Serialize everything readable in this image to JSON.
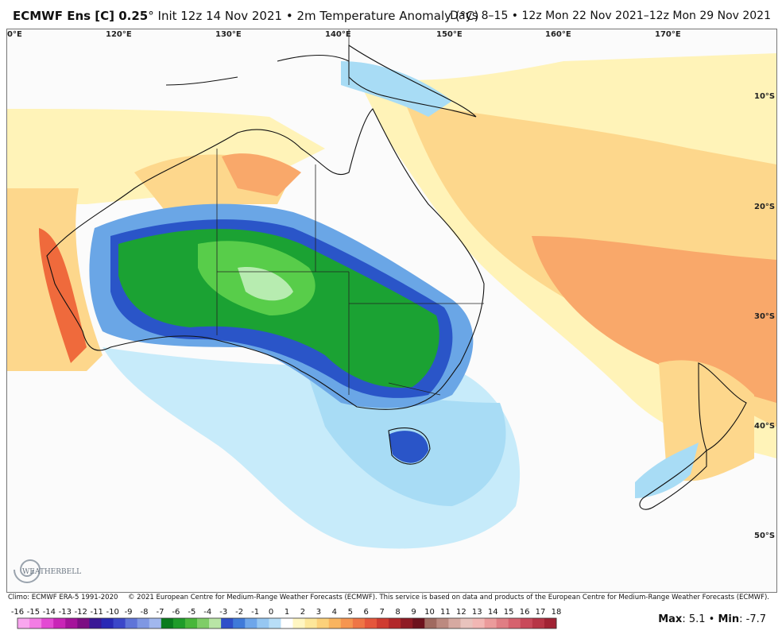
{
  "header": {
    "model": "ECMWF Ens [C] 0.25",
    "degree_sign": "°",
    "init": "Init 12z 14 Nov 2021",
    "bullet": "•",
    "field": "2m Temperature Anomaly (°C)",
    "valid": "Days 8–15 • 12z Mon 22 Nov 2021–12z Mon 29 Nov 2021"
  },
  "map": {
    "lon_labels": [
      "0°E",
      "120°E",
      "130°E",
      "140°E",
      "150°E",
      "160°E",
      "170°E"
    ],
    "lat_labels": [
      "10°S",
      "20°S",
      "30°S",
      "40°S",
      "50°S"
    ],
    "colors": {
      "ocean_neutral": "#fbfbfb",
      "warm_light": "#fff3b8",
      "warm_mid": "#fdd78c",
      "warm_strong": "#f9a86a",
      "warm_hot": "#ef6a3c",
      "cool_light": "#c7ebfa",
      "cool_mid": "#a8dcf5",
      "cool_blue": "#6aa6e6",
      "cool_deep": "#2a55c8",
      "cool_green": "#1ba233",
      "cool_lightgreen": "#58cd4a",
      "cool_palegreen": "#b7ecb0"
    }
  },
  "credits": {
    "climo": "Climo: ECMWF ERA-5 1991-2020",
    "copyright": "© 2021 European Centre for Medium-Range Weather Forecasts (ECMWF). This service is based on data and products of the European Centre for Medium-Range Weather Forecasts (ECMWF)."
  },
  "logo": {
    "text": "WEATHERBELL",
    "icon": "swirl-icon"
  },
  "colorbar": {
    "ticks": [
      "-16",
      "-15",
      "-14",
      "-13",
      "-12",
      "-11",
      "-10",
      "-9",
      "-8",
      "-7",
      "-6",
      "-5",
      "-4",
      "-3",
      "-2",
      "-1",
      "0",
      "1",
      "2",
      "3",
      "4",
      "5",
      "6",
      "7",
      "8",
      "9",
      "10",
      "11",
      "12",
      "13",
      "14",
      "15",
      "16",
      "17",
      "18"
    ],
    "colors": [
      "#f9a6ef",
      "#f37de4",
      "#e34ad3",
      "#c925b7",
      "#a5139b",
      "#7c0e83",
      "#3a1896",
      "#2929b5",
      "#3b47c9",
      "#5f74d8",
      "#7f97e3",
      "#a1b7ee",
      "#0a7b1e",
      "#1f9c2a",
      "#48b63a",
      "#7fcd67",
      "#b9e5a6",
      "#2f4fc9",
      "#3f7ad9",
      "#6ea6ea",
      "#96c7f2",
      "#b8def7",
      "#ffffff",
      "#fff6c2",
      "#fde79a",
      "#fcd17a",
      "#f9b45f",
      "#f69550",
      "#ef7545",
      "#e5563b",
      "#cf3b30",
      "#b2282a",
      "#8f1b24",
      "#6d121d",
      "#a06a60",
      "#bc8a80",
      "#d6a9a1",
      "#e9c3bd",
      "#f2b7b4",
      "#eb9b9b",
      "#e07e84",
      "#d6626e",
      "#c9495a",
      "#b73546",
      "#a12334"
    ]
  },
  "stats": {
    "max_label": "Max",
    "max_value": ": 5.1",
    "sep": "•",
    "min_label": "Min",
    "min_value": ": -7.7"
  }
}
